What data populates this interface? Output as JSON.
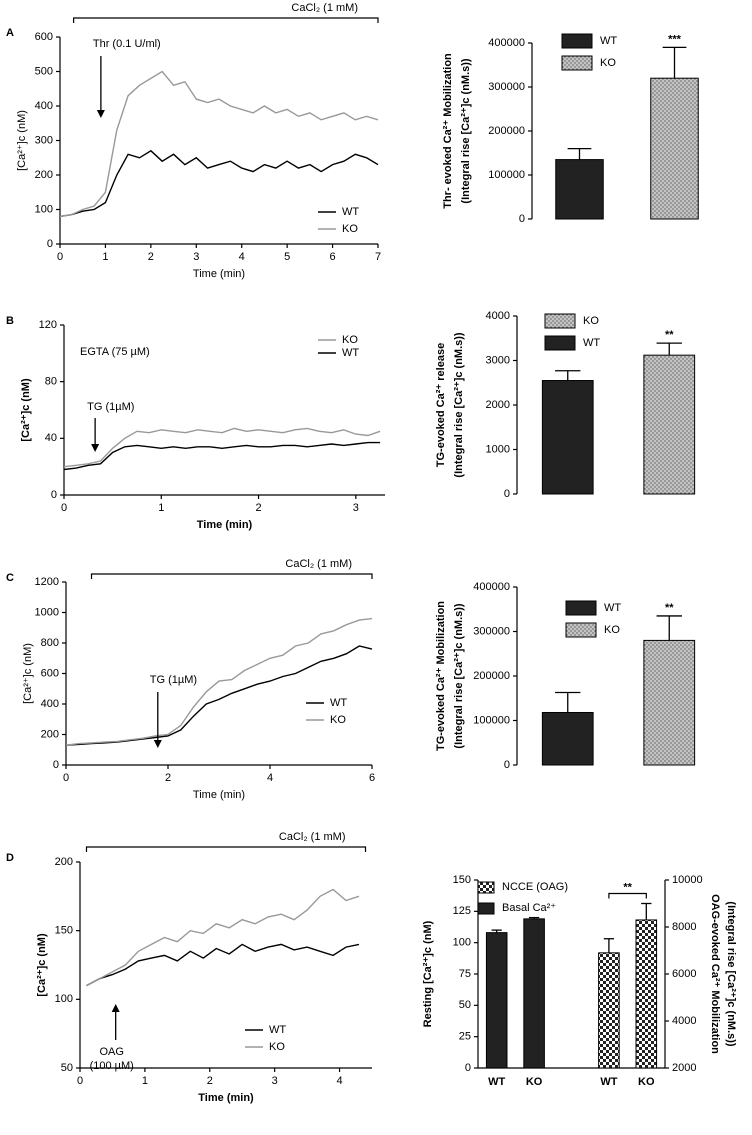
{
  "chart_data": [
    {
      "type": "line",
      "panel": "A",
      "ylabel": "[Ca²⁺]c (nM)",
      "xlabel": "Time (min)",
      "xlim": [
        0,
        7
      ],
      "ylim": [
        0,
        600
      ],
      "xticks": [
        0,
        1,
        2,
        3,
        4,
        5,
        6,
        7
      ],
      "yticks": [
        0,
        100,
        200,
        300,
        400,
        500,
        600
      ],
      "legend": "lower right",
      "annotations": [
        {
          "text": "CaCl₂ (1 mM)",
          "span": [
            0.3,
            7
          ]
        },
        {
          "text": "Thr (0.1 U/ml)",
          "x": 0.9
        }
      ],
      "x": [
        0,
        0.25,
        0.5,
        0.75,
        1,
        1.25,
        1.5,
        1.75,
        2,
        2.25,
        2.5,
        2.75,
        3,
        3.25,
        3.5,
        3.75,
        4,
        4.25,
        4.5,
        4.75,
        5,
        5.25,
        5.5,
        5.75,
        6,
        6.25,
        6.5,
        6.75,
        7
      ],
      "series": [
        {
          "name": "WT",
          "color": "#000000",
          "values": [
            80,
            85,
            95,
            100,
            120,
            200,
            260,
            250,
            270,
            240,
            260,
            230,
            250,
            220,
            230,
            240,
            220,
            210,
            230,
            220,
            240,
            220,
            230,
            210,
            230,
            240,
            260,
            250,
            230
          ]
        },
        {
          "name": "KO",
          "color": "#999999",
          "values": [
            80,
            85,
            100,
            110,
            150,
            330,
            430,
            460,
            480,
            500,
            460,
            470,
            420,
            410,
            420,
            400,
            390,
            380,
            400,
            380,
            390,
            370,
            380,
            360,
            370,
            380,
            360,
            370,
            360
          ]
        }
      ]
    },
    {
      "type": "bar",
      "ylabel": "Thr- evoked Ca²⁺ Mobilization",
      "ylabel_sub": "(Integral rise [Ca²⁺]c (nM.s))",
      "categories": [
        "WT",
        "KO"
      ],
      "values": [
        135000,
        320000
      ],
      "errors": [
        25000,
        70000
      ],
      "colors": [
        "#222222",
        "#bbbbbb"
      ],
      "patterns": [
        "solid",
        "dots"
      ],
      "significance": "***",
      "ylim": [
        0,
        400000
      ],
      "yticks": [
        0,
        100000,
        200000,
        300000,
        400000
      ]
    },
    {
      "type": "line",
      "panel": "B",
      "ylabel": "[Ca²⁺]c (nM)",
      "xlabel": "Time (min)",
      "xlim": [
        0,
        3.3
      ],
      "ylim": [
        0,
        120
      ],
      "xticks": [
        0,
        1,
        2,
        3
      ],
      "yticks": [
        0,
        40,
        80,
        120
      ],
      "legend": "upper right",
      "annotations": [
        {
          "text": "EGTA (75 µM)"
        },
        {
          "text": "TG (1µM)",
          "x": 0.32
        }
      ],
      "x": [
        0,
        0.125,
        0.25,
        0.375,
        0.5,
        0.625,
        0.75,
        0.875,
        1,
        1.125,
        1.25,
        1.375,
        1.5,
        1.625,
        1.75,
        1.875,
        2,
        2.125,
        2.25,
        2.375,
        2.5,
        2.625,
        2.75,
        2.875,
        3,
        3.125,
        3.25
      ],
      "series": [
        {
          "name": "KO",
          "color": "#999999",
          "values": [
            20,
            21,
            22,
            24,
            33,
            40,
            45,
            44,
            46,
            45,
            44,
            46,
            45,
            44,
            47,
            45,
            46,
            45,
            44,
            46,
            47,
            45,
            44,
            46,
            43,
            42,
            45
          ]
        },
        {
          "name": "WT",
          "color": "#000000",
          "values": [
            18,
            19,
            21,
            22,
            30,
            34,
            35,
            34,
            33,
            34,
            33,
            34,
            34,
            33,
            34,
            35,
            34,
            34,
            35,
            35,
            34,
            35,
            36,
            35,
            36,
            37,
            37
          ]
        }
      ]
    },
    {
      "type": "bar",
      "ylabel": "TG-evoked Ca²⁺ release",
      "ylabel_sub": "(Integral rise [Ca²⁺]c (nM.s))",
      "categories": [
        "WT",
        "KO"
      ],
      "values": [
        2550,
        3120
      ],
      "errors": [
        220,
        270
      ],
      "colors": [
        "#222222",
        "#bbbbbb"
      ],
      "patterns": [
        "solid",
        "dots"
      ],
      "significance": "**",
      "legend_reverse": true,
      "ylim": [
        0,
        4000
      ],
      "yticks": [
        0,
        1000,
        2000,
        3000,
        4000
      ]
    },
    {
      "type": "line",
      "panel": "C",
      "ylabel": "[Ca²⁺]c (nM)",
      "xlabel": "Time (min)",
      "xlim": [
        0,
        6
      ],
      "ylim": [
        0,
        1200
      ],
      "xticks": [
        0,
        2,
        4,
        6
      ],
      "yticks": [
        0,
        200,
        400,
        600,
        800,
        1000,
        1200
      ],
      "legend": "lower right",
      "annotations": [
        {
          "text": "CaCl₂ (1 mM)",
          "span": [
            0.5,
            6
          ]
        },
        {
          "text": "TG (1µM)",
          "x": 1.8
        }
      ],
      "x": [
        0,
        0.25,
        0.5,
        0.75,
        1,
        1.25,
        1.5,
        1.75,
        2,
        2.25,
        2.5,
        2.75,
        3,
        3.25,
        3.5,
        3.75,
        4,
        4.25,
        4.5,
        4.75,
        5,
        5.25,
        5.5,
        5.75,
        6
      ],
      "series": [
        {
          "name": "WT",
          "color": "#000000",
          "values": [
            130,
            135,
            140,
            145,
            150,
            160,
            170,
            180,
            190,
            230,
            320,
            400,
            430,
            470,
            500,
            530,
            550,
            580,
            600,
            640,
            680,
            700,
            730,
            780,
            760
          ]
        },
        {
          "name": "KO",
          "color": "#999999",
          "values": [
            130,
            140,
            145,
            150,
            155,
            165,
            175,
            190,
            200,
            260,
            380,
            480,
            550,
            560,
            620,
            660,
            700,
            720,
            780,
            800,
            860,
            880,
            920,
            950,
            960
          ]
        }
      ]
    },
    {
      "type": "bar",
      "ylabel": "TG-evoked Ca²⁺ Mobilization",
      "ylabel_sub": "(Integral rise [Ca²⁺]c (nM.s))",
      "categories": [
        "WT",
        "KO"
      ],
      "values": [
        118000,
        280000
      ],
      "errors": [
        45000,
        55000
      ],
      "colors": [
        "#222222",
        "#bbbbbb"
      ],
      "patterns": [
        "solid",
        "dots"
      ],
      "significance": "**",
      "ylim": [
        0,
        400000
      ],
      "yticks": [
        0,
        100000,
        200000,
        300000,
        400000
      ]
    },
    {
      "type": "line",
      "panel": "D",
      "ylabel": "[Ca²⁺]c (nM)",
      "xlabel": "Time  (min)",
      "xlim": [
        0,
        4.5
      ],
      "ylim": [
        50,
        200
      ],
      "xticks": [
        0,
        1,
        2,
        3,
        4
      ],
      "yticks": [
        50,
        100,
        150,
        200
      ],
      "legend": "lower right",
      "annotations": [
        {
          "text": "CaCl₂ (1 mM)",
          "span": [
            0.1,
            4.4
          ]
        },
        {
          "text": "OAG",
          "note": "(100 µM)",
          "x": 0.55
        }
      ],
      "x": [
        0.1,
        0.3,
        0.5,
        0.7,
        0.9,
        1.1,
        1.3,
        1.5,
        1.7,
        1.9,
        2.1,
        2.3,
        2.5,
        2.7,
        2.9,
        3.1,
        3.3,
        3.5,
        3.7,
        3.9,
        4.1,
        4.3
      ],
      "series": [
        {
          "name": "WT",
          "color": "#000000",
          "values": [
            110,
            115,
            118,
            122,
            128,
            130,
            132,
            128,
            135,
            130,
            137,
            133,
            140,
            135,
            138,
            140,
            136,
            138,
            135,
            132,
            138,
            140
          ]
        },
        {
          "name": "KO",
          "color": "#999999",
          "values": [
            110,
            115,
            120,
            125,
            135,
            140,
            145,
            142,
            150,
            148,
            155,
            152,
            158,
            155,
            160,
            162,
            158,
            165,
            175,
            180,
            172,
            175
          ]
        }
      ]
    },
    {
      "type": "bar",
      "ylabel": "Resting [Ca²⁺]c (nM)",
      "y2label": "OAG-evoked Ca²⁺ Mobilization",
      "y2label_sub": "(Integral rise [Ca²⁺]c (nM.s))",
      "categories": [
        "WT",
        "KO",
        "WT",
        "KO"
      ],
      "series": [
        {
          "name": "NCCE (OAG)",
          "color": "#222222",
          "pattern": "checker",
          "axis": "y2",
          "values": [
            null,
            null,
            6900,
            8300
          ],
          "errors": [
            null,
            null,
            600,
            700
          ]
        },
        {
          "name": "Basal Ca²⁺",
          "color": "#222222",
          "pattern": "solid",
          "values": [
            108,
            119,
            null,
            null
          ],
          "errors": [
            2,
            1,
            null,
            null
          ]
        }
      ],
      "significance": "**",
      "ylim": [
        0,
        150
      ],
      "yticks": [
        0,
        25,
        50,
        75,
        100,
        125,
        150
      ],
      "y2lim": [
        2000,
        10000
      ],
      "y2ticks": [
        2000,
        4000,
        6000,
        8000,
        10000
      ]
    }
  ]
}
